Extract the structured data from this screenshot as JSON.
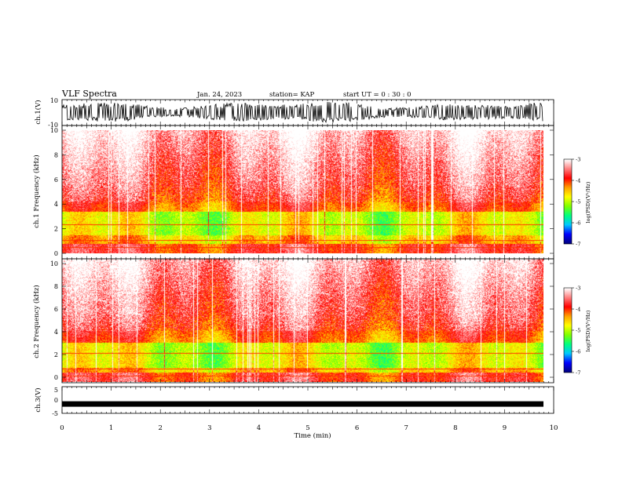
{
  "header": {
    "title": "VLF Spectra",
    "date": "Jan. 24, 2023",
    "station": "station= KAP",
    "start": "start  UT =   0 : 30 : 0"
  },
  "colors": {
    "cmap": [
      "#000080",
      "#0000ff",
      "#00c8ff",
      "#00ff80",
      "#80ff00",
      "#ffff00",
      "#ffa000",
      "#ff0000",
      "#ff8080",
      "#ffffff"
    ],
    "ink": "#000000"
  },
  "chart_data": [
    {
      "type": "line",
      "name": "ch1-waveform",
      "ylabel": "ch.1(V)",
      "ylim": [
        -10,
        10
      ],
      "yticks": [
        "10",
        "-10"
      ],
      "xlim": [
        0,
        10
      ],
      "description_values": {
        "typical_amplitude_V": [
          -8,
          9
        ]
      }
    },
    {
      "type": "heatmap",
      "name": "ch1-spectrogram",
      "ylabel": "ch.1  Frequency  (kHz)",
      "ylim": [
        0,
        10
      ],
      "yticks": [
        "0",
        "2",
        "4",
        "6",
        "8",
        "10"
      ],
      "xlim": [
        0,
        9.85
      ],
      "band_peak_kHz": [
        1.5,
        3.4
      ],
      "colorbar": {
        "label": "log(PSD)(V²/Hz)",
        "range": [
          -7,
          -3
        ],
        "ticks": [
          "-3",
          "-4",
          "-5",
          "-6",
          "-7"
        ]
      }
    },
    {
      "type": "heatmap",
      "name": "ch2-spectrogram",
      "ylabel": "ch.2  Frequency  (kHz)",
      "ylim": [
        0,
        10
      ],
      "yticks": [
        "0",
        "2",
        "4",
        "6",
        "8",
        "10"
      ],
      "xlim": [
        0,
        9.85
      ],
      "band_peak_kHz": [
        1.2,
        3.2
      ],
      "colorbar": {
        "label": "log(PSD)(V²/Hz)",
        "range": [
          -7,
          -3
        ],
        "ticks": [
          "-3",
          "-4",
          "-5",
          "-6",
          "-7"
        ]
      }
    },
    {
      "type": "line",
      "name": "ch3-waveform",
      "ylabel": "ch.3(V)",
      "ylim": [
        -5,
        5
      ],
      "yticks": [
        "5",
        "0",
        "-5"
      ],
      "xlim": [
        0,
        10
      ],
      "description_values": {
        "level_V": -1.5
      }
    }
  ],
  "xaxis": {
    "label": "Time  (min)",
    "ticks": [
      "0",
      "1",
      "2",
      "3",
      "4",
      "5",
      "6",
      "7",
      "8",
      "9",
      "10"
    ],
    "range": [
      0,
      10
    ]
  }
}
